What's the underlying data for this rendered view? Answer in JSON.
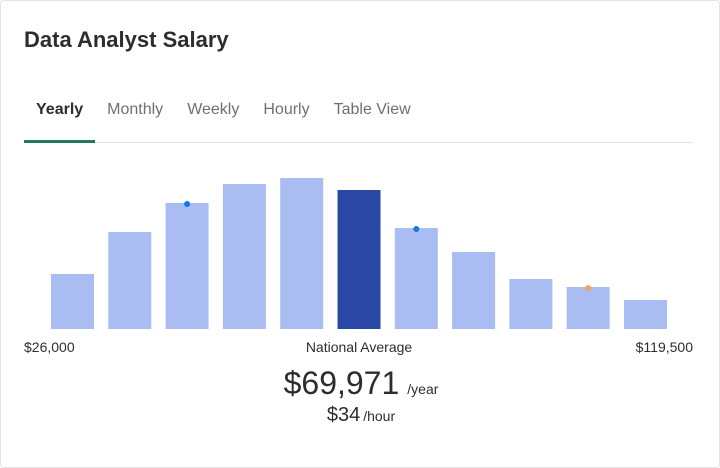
{
  "title": "Data Analyst Salary",
  "tabs": [
    {
      "label": "Yearly",
      "active": true
    },
    {
      "label": "Monthly",
      "active": false
    },
    {
      "label": "Weekly",
      "active": false
    },
    {
      "label": "Hourly",
      "active": false
    },
    {
      "label": "Table View",
      "active": false
    }
  ],
  "chart_data": {
    "type": "bar",
    "x_min_label": "$26,000",
    "x_max_label": "$119,500",
    "center_label": "National Average",
    "values": [
      55,
      97,
      126,
      145,
      151,
      139,
      101,
      77,
      50,
      42,
      29
    ],
    "highlight_index": 5,
    "markers": [
      {
        "bar": 2,
        "color": "#1a73e8"
      },
      {
        "bar": 6,
        "color": "#1a73e8"
      },
      {
        "bar": 9,
        "color": "#f7a35c"
      }
    ],
    "colors": {
      "bar": "#aabdf3",
      "highlight": "#2a47a6"
    }
  },
  "average": {
    "yearly_value": "$69,971",
    "yearly_unit": "/year",
    "hourly_value": "$34",
    "hourly_unit": "/hour"
  }
}
